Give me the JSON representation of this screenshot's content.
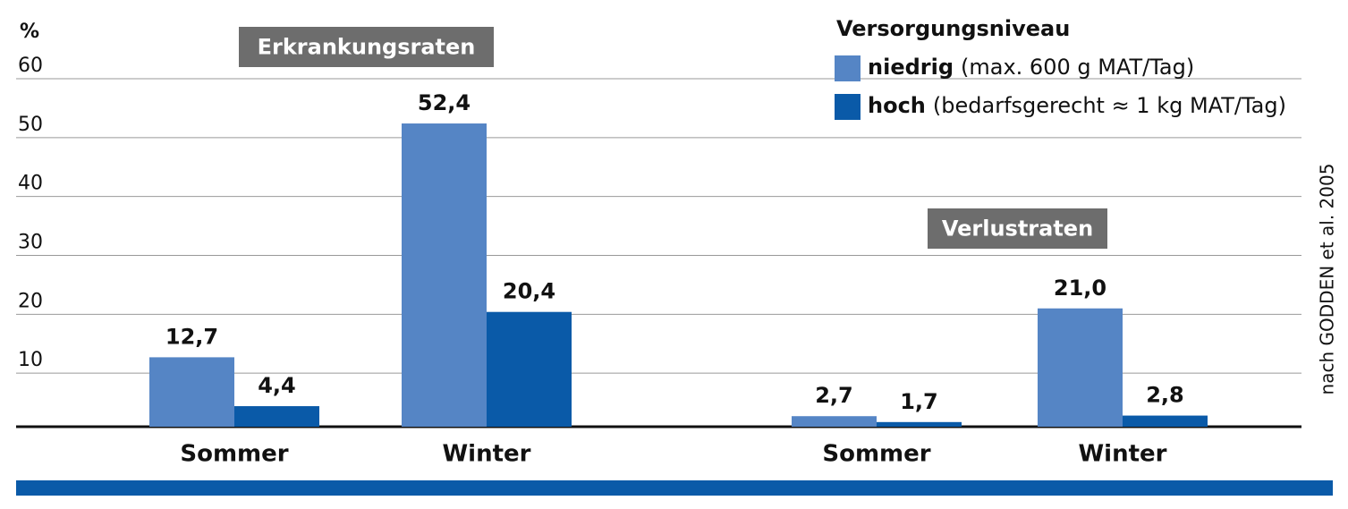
{
  "chart_data": {
    "type": "bar",
    "y_label": "%",
    "panels": [
      "Erkrankungsraten",
      "Verlustraten"
    ],
    "categories": [
      "Sommer",
      "Winter",
      "Sommer",
      "Winter"
    ],
    "legend_title": "Versorgungsniveau",
    "series": [
      {
        "name": "niedrig",
        "note": "(max. 600 g MAT/Tag)",
        "color": "#5585c5",
        "values": [
          12.7,
          52.4,
          2.7,
          21.0
        ],
        "value_labels": [
          "12,7",
          "52,4",
          "2,7",
          "21,0"
        ]
      },
      {
        "name": "hoch",
        "note": "(bedarfsgerecht ≈ 1 kg MAT/Tag)",
        "color": "#0a5aa8",
        "values": [
          4.4,
          20.4,
          1.7,
          2.8
        ],
        "value_labels": [
          "4,4",
          "20,4",
          "1,7",
          "2,8"
        ]
      }
    ],
    "ylim": [
      0,
      60
    ],
    "yticks": [
      10,
      20,
      30,
      40,
      50,
      60
    ],
    "grid": true,
    "source": "nach GODDEN et al. 2005"
  }
}
